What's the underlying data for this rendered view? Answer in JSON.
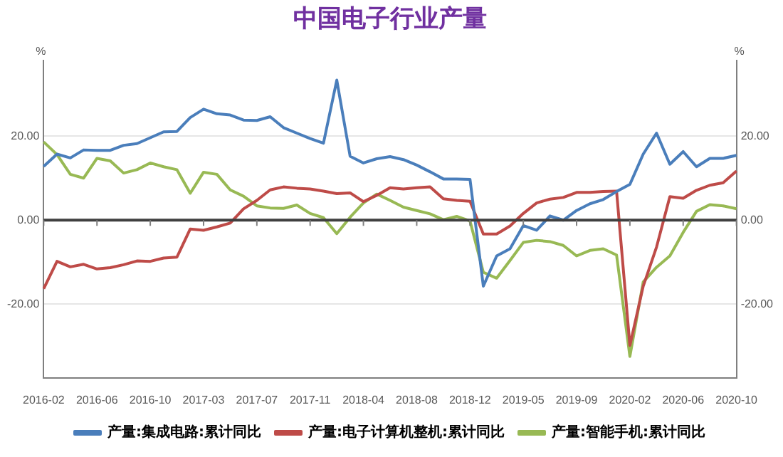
{
  "chart_data": {
    "type": "line",
    "title": "中国电子行业产量",
    "ylabel": "%",
    "y2label": "%",
    "categories": [
      "2016-02",
      null,
      null,
      null,
      "2016-06",
      null,
      null,
      null,
      "2016-10",
      null,
      null,
      null,
      "2017-03",
      null,
      null,
      null,
      "2017-07",
      null,
      null,
      null,
      "2017-11",
      null,
      null,
      null,
      "2018-04",
      null,
      null,
      null,
      "2018-08",
      null,
      null,
      null,
      "2018-12",
      null,
      null,
      null,
      "2019-05",
      null,
      null,
      null,
      "2019-09",
      null,
      null,
      null,
      "2020-02",
      null,
      null,
      null,
      "2020-06",
      null,
      null,
      null,
      "2020-10"
    ],
    "series": [
      {
        "name": "产量:集成电路:累计同比",
        "color": "#4a7ebb",
        "values": [
          12.8,
          15.7,
          14.8,
          16.7,
          16.6,
          16.6,
          17.8,
          18.2,
          19.6,
          21,
          21.1,
          24.4,
          26.4,
          25.3,
          25,
          23.8,
          23.7,
          24.6,
          22,
          20.7,
          19.4,
          18.3,
          33.3,
          15.2,
          13.6,
          14.6,
          15.1,
          14.4,
          13.1,
          11.5,
          9.8,
          9.8,
          9.7,
          -15.7,
          -8.5,
          -6.8,
          -1.3,
          -2.4,
          1,
          0,
          2.3,
          3.9,
          4.9,
          6.8,
          8.5,
          15.7,
          20.7,
          13.3,
          16.3,
          12.7,
          14.7,
          14.7,
          15.4
        ]
      },
      {
        "name": "产量:电子计算机整机:累计同比",
        "color": "#be4b48",
        "values": [
          -16.3,
          -9.8,
          -11.1,
          -10.5,
          -11.6,
          -11.3,
          -10.6,
          -9.7,
          -9.8,
          -9,
          -8.8,
          -2.1,
          -2.4,
          -1.6,
          -0.7,
          2.7,
          4.7,
          7.2,
          7.9,
          7.6,
          7.4,
          6.9,
          6.3,
          6.5,
          4.4,
          5.9,
          7.7,
          7.4,
          7.7,
          7.9,
          5.1,
          4.7,
          4.5,
          -3.3,
          -3.3,
          -1.4,
          1.6,
          4.1,
          5,
          5.4,
          6.6,
          6.6,
          6.8,
          6.9,
          -29.8,
          -15.7,
          -6.4,
          5.6,
          5.2,
          7.1,
          8.3,
          8.9,
          11.7
        ]
      },
      {
        "name": "产量:智能手机:累计同比",
        "color": "#98b954",
        "values": [
          18.6,
          15.6,
          10.9,
          10,
          14.7,
          14.1,
          11.2,
          12,
          13.6,
          12.7,
          12,
          6.4,
          11.4,
          10.9,
          7.2,
          5.7,
          3.4,
          2.9,
          2.8,
          3.6,
          1.6,
          0.6,
          -3.2,
          0.7,
          4.1,
          6.2,
          4.7,
          3.1,
          2.3,
          1.5,
          0.1,
          0.9,
          -0.2,
          -12.4,
          -13.8,
          -9.6,
          -5.3,
          -4.8,
          -5.1,
          -6,
          -8.5,
          -7.2,
          -6.8,
          -8.3,
          -32.4,
          -14.7,
          -11.2,
          -8.5,
          -2.9,
          2.1,
          3.7,
          3.4,
          2.7
        ]
      }
    ],
    "ylim": [
      -37.5,
      38
    ],
    "yticks": [
      {
        "value": -20,
        "label": "-20.00"
      },
      {
        "value": 0,
        "label": "0.00"
      },
      {
        "value": 20,
        "label": "20.00"
      }
    ],
    "y2lim": [
      -37.5,
      38
    ],
    "y2ticks": [
      {
        "value": -20,
        "label": "-20.00"
      },
      {
        "value": 0,
        "label": "0.00"
      },
      {
        "value": 20,
        "label": "20.00"
      }
    ],
    "ref_lines": [
      {
        "axis": "y",
        "value": 0,
        "color": "#404040"
      }
    ],
    "grid": "y",
    "legend": "bottom",
    "marker": "none",
    "line_style": "solid"
  }
}
